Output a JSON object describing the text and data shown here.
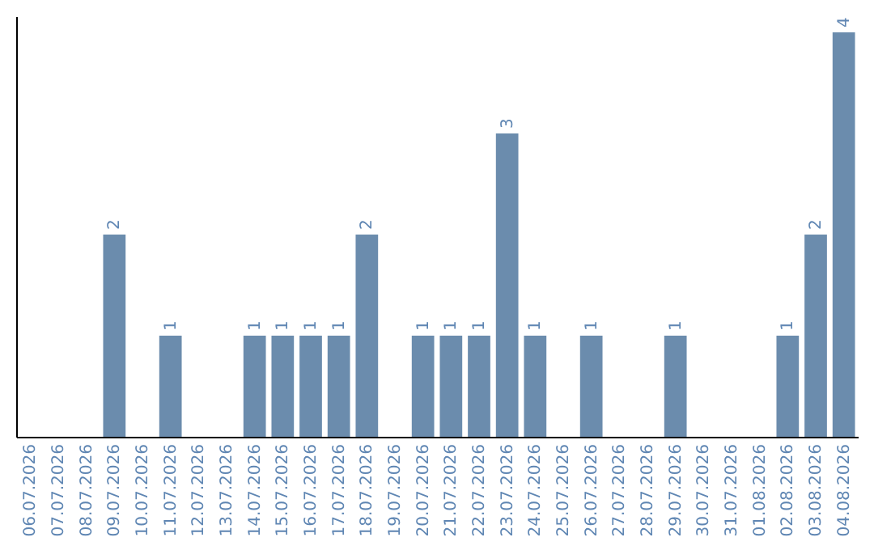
{
  "chart_data": {
    "type": "bar",
    "categories": [
      "06.07.2026",
      "07.07.2026",
      "08.07.2026",
      "09.07.2026",
      "10.07.2026",
      "11.07.2026",
      "12.07.2026",
      "13.07.2026",
      "14.07.2026",
      "15.07.2026",
      "16.07.2026",
      "17.07.2026",
      "18.07.2026",
      "19.07.2026",
      "20.07.2026",
      "21.07.2026",
      "22.07.2026",
      "23.07.2026",
      "24.07.2026",
      "25.07.2026",
      "26.07.2026",
      "27.07.2026",
      "28.07.2026",
      "29.07.2026",
      "30.07.2026",
      "31.07.2026",
      "01.08.2026",
      "02.08.2026",
      "03.08.2026",
      "04.08.2026"
    ],
    "values": [
      0,
      0,
      0,
      2,
      0,
      1,
      0,
      0,
      1,
      1,
      1,
      1,
      2,
      0,
      1,
      1,
      1,
      3,
      1,
      0,
      1,
      0,
      0,
      1,
      0,
      0,
      0,
      1,
      2,
      4
    ],
    "value_labels": [
      null,
      null,
      null,
      "2",
      null,
      "1",
      null,
      null,
      "1",
      "1",
      "1",
      "1",
      "2",
      null,
      "1",
      "1",
      "1",
      "3",
      "1",
      null,
      "1",
      null,
      null,
      "1",
      null,
      null,
      null,
      "1",
      "2",
      "4"
    ],
    "color": "#6b8cad",
    "ylim": [
      0,
      4.16
    ],
    "tick_labels": "x",
    "grid": false
  }
}
